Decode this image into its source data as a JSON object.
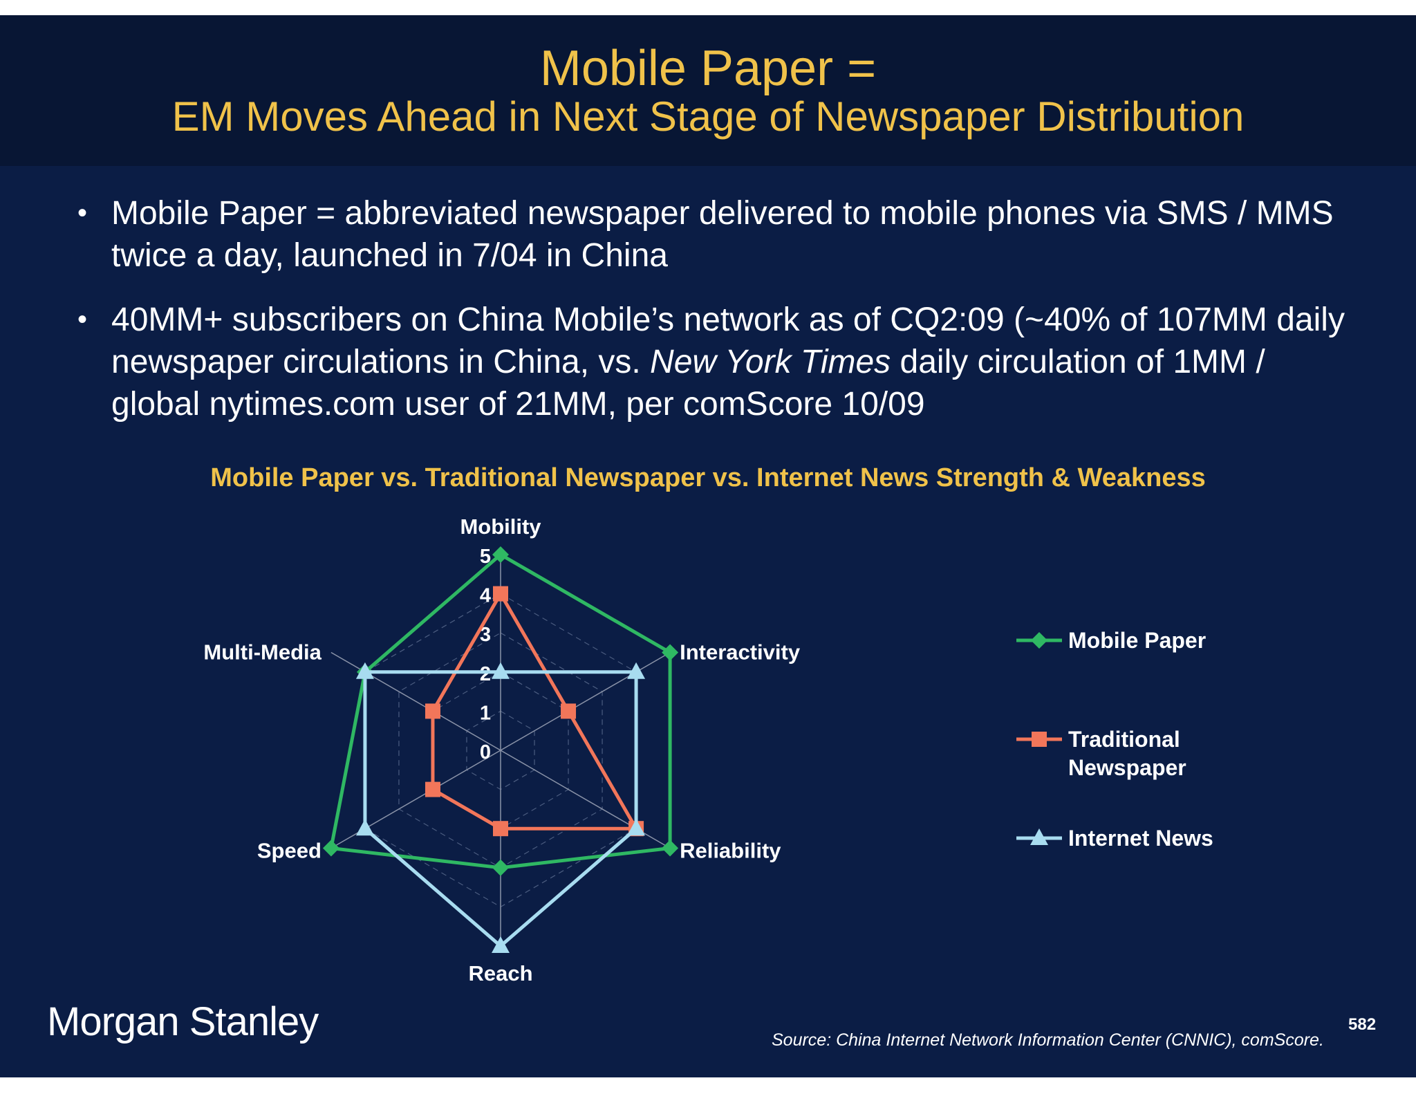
{
  "slide": {
    "title_line1": "Mobile Paper =",
    "title_line2": "EM Moves Ahead in Next Stage of Newspaper Distribution",
    "bullets": [
      {
        "text": "Mobile Paper = abbreviated newspaper delivered to mobile phones via SMS / MMS twice a day, launched in 7/04 in China"
      },
      {
        "text_before": "40MM+ subscribers on China Mobile’s network as of CQ2:09 (~40% of 107MM daily newspaper circulations in China, vs. ",
        "text_italic": "New York Times",
        "text_after": " daily circulation of 1MM / global nytimes.com user of 21MM, per comScore 10/09"
      }
    ],
    "logo_text": "Morgan Stanley",
    "source": "Source: China Internet Network Information Center (CNNIC), comScore.",
    "page_number": "582"
  },
  "chart_data": {
    "type": "radar",
    "title": "Mobile Paper vs. Traditional Newspaper vs. Internet News Strength & Weakness",
    "axes": [
      "Mobility",
      "Interactivity",
      "Reliability",
      "Reach",
      "Speed",
      "Multi-Media"
    ],
    "range": [
      0,
      5
    ],
    "tick_labels": [
      "0",
      "1",
      "2",
      "3",
      "4",
      "5"
    ],
    "grid": true,
    "legend_position": "right",
    "series": [
      {
        "name": "Mobile Paper",
        "values": [
          5,
          5,
          5,
          3,
          5,
          4
        ],
        "color": "#2fb863",
        "marker": "diamond"
      },
      {
        "name": "Traditional Newspaper",
        "values": [
          4,
          2,
          4,
          2,
          2,
          2
        ],
        "color": "#f2765a",
        "marker": "square"
      },
      {
        "name": "Internet News",
        "values": [
          2,
          4,
          4,
          5,
          4,
          4
        ],
        "color": "#a8dcf0",
        "marker": "triangle"
      }
    ]
  }
}
